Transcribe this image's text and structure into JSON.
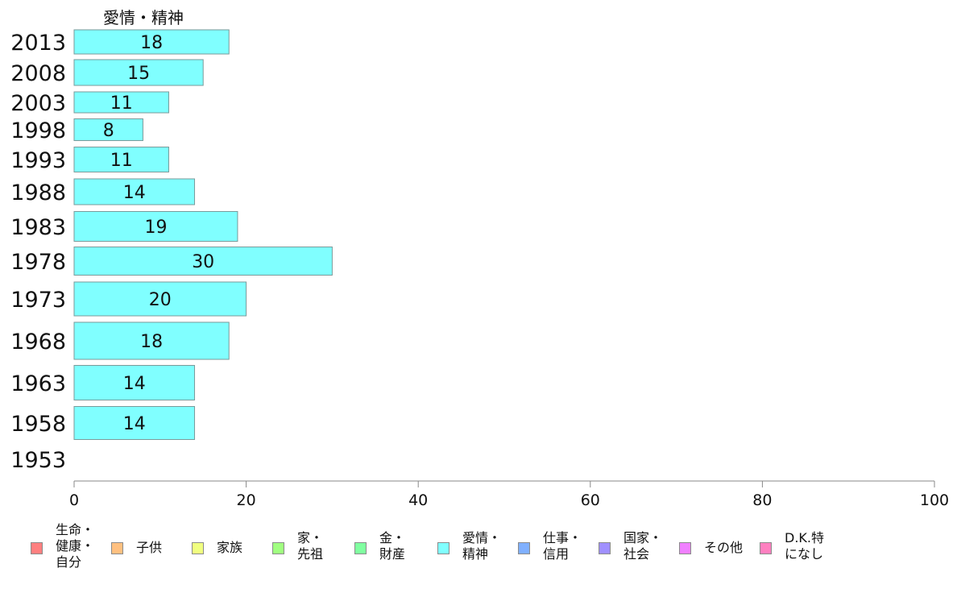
{
  "chart_data": {
    "type": "bar",
    "orientation": "horizontal",
    "panel_title": "愛情・精神",
    "categories": [
      "2013",
      "2008",
      "2003",
      "1998",
      "1993",
      "1988",
      "1983",
      "1978",
      "1973",
      "1968",
      "1963",
      "1958",
      "1953"
    ],
    "series": [
      {
        "name": "愛情・精神",
        "color": "#80ffff",
        "values": [
          18,
          15,
          11,
          8,
          11,
          14,
          19,
          30,
          20,
          18,
          14,
          14,
          null
        ]
      }
    ],
    "xlim": [
      0,
      100
    ],
    "xticks": [
      0,
      20,
      40,
      60,
      80,
      100
    ],
    "grid": false,
    "legend_position": "bottom",
    "legend": [
      {
        "label": "生命・\n健康・\n自分",
        "color": "#ff8080"
      },
      {
        "label": "子供",
        "color": "#ffc080"
      },
      {
        "label": "家族",
        "color": "#f0ff80"
      },
      {
        "label": "家・\n先祖",
        "color": "#a0ff80"
      },
      {
        "label": "金・\n財産",
        "color": "#80ffa0"
      },
      {
        "label": "愛情・\n精神",
        "color": "#80ffff"
      },
      {
        "label": "仕事・\n信用",
        "color": "#80b0ff"
      },
      {
        "label": "国家・\n社会",
        "color": "#a090ff"
      },
      {
        "label": "その他",
        "color": "#f080ff"
      },
      {
        "label": "D.K.特\nになし",
        "color": "#ff80c0"
      }
    ]
  }
}
